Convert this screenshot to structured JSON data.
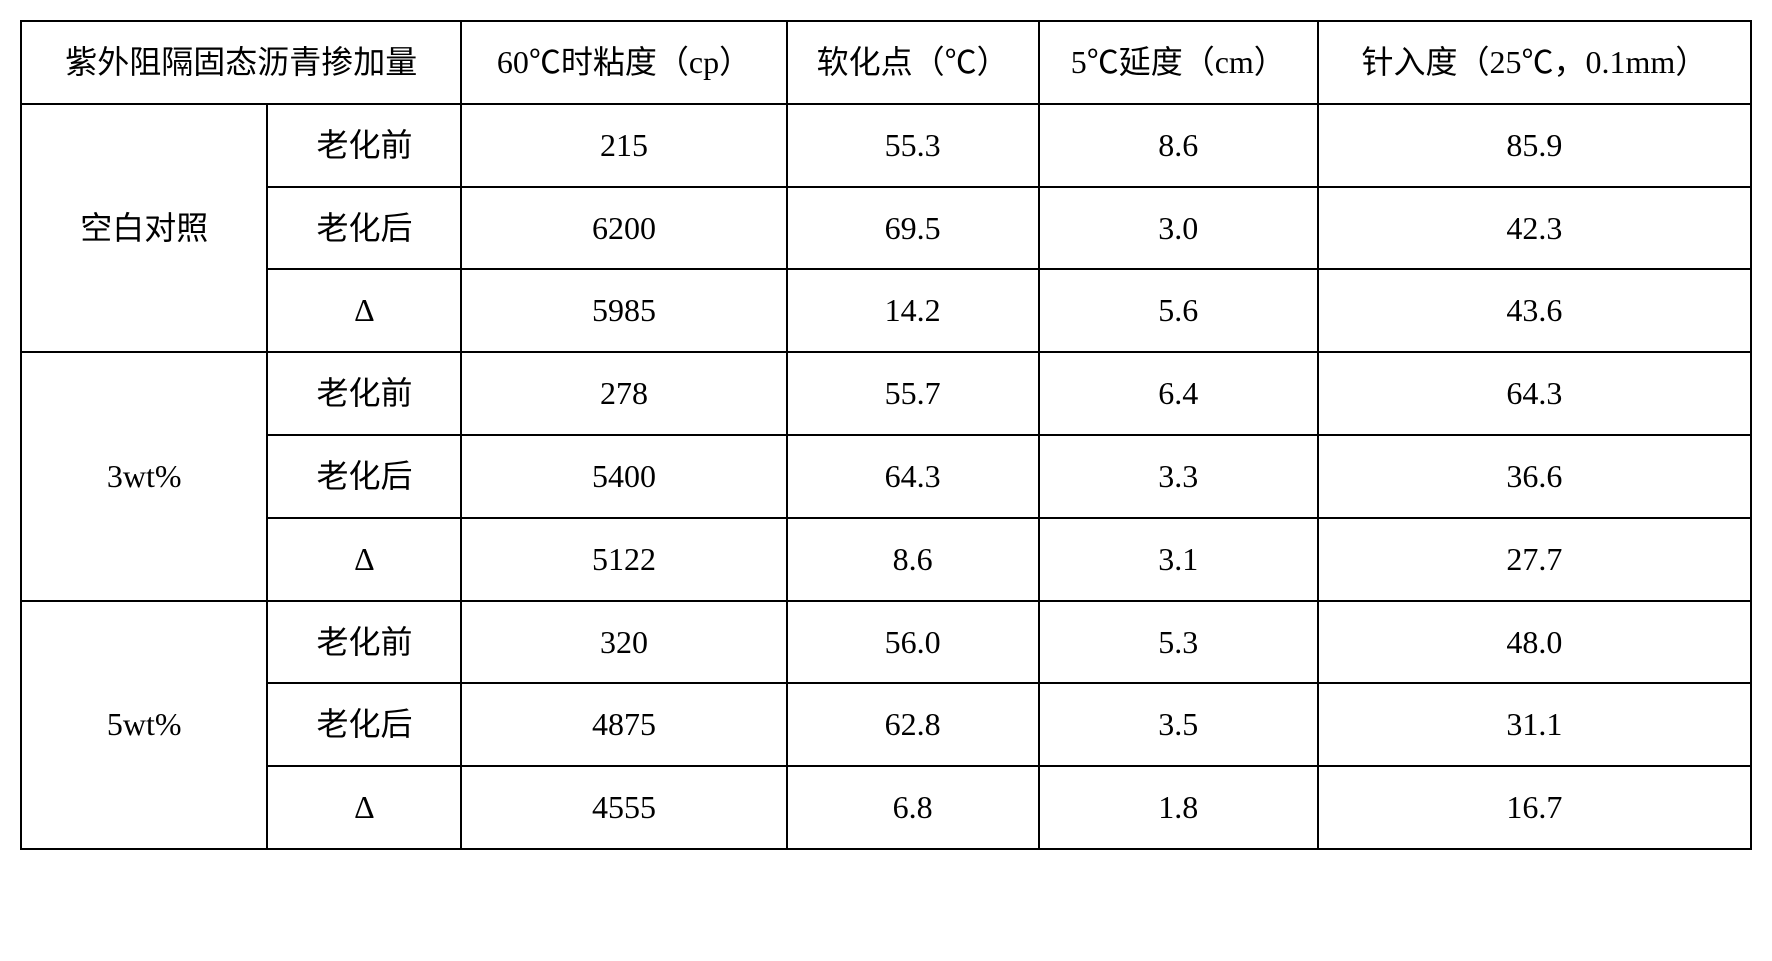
{
  "table": {
    "headers": {
      "col1": "紫外阻隔固态沥青掺加量",
      "col2": "60℃时粘度（cp）",
      "col3": "软化点（℃）",
      "col4": "5℃延度（cm）",
      "col5": "针入度（25℃，0.1mm）"
    },
    "groups": [
      {
        "label": "空白对照",
        "rows": [
          {
            "condition": "老化前",
            "viscosity": "215",
            "softening": "55.3",
            "ductility": "8.6",
            "penetration": "85.9"
          },
          {
            "condition": "老化后",
            "viscosity": "6200",
            "softening": "69.5",
            "ductility": "3.0",
            "penetration": "42.3"
          },
          {
            "condition": "Δ",
            "viscosity": "5985",
            "softening": "14.2",
            "ductility": "5.6",
            "penetration": "43.6"
          }
        ]
      },
      {
        "label": "3wt%",
        "rows": [
          {
            "condition": "老化前",
            "viscosity": "278",
            "softening": "55.7",
            "ductility": "6.4",
            "penetration": "64.3"
          },
          {
            "condition": "老化后",
            "viscosity": "5400",
            "softening": "64.3",
            "ductility": "3.3",
            "penetration": "36.6"
          },
          {
            "condition": "Δ",
            "viscosity": "5122",
            "softening": "8.6",
            "ductility": "3.1",
            "penetration": "27.7"
          }
        ]
      },
      {
        "label": "5wt%",
        "rows": [
          {
            "condition": "老化前",
            "viscosity": "320",
            "softening": "56.0",
            "ductility": "5.3",
            "penetration": "48.0"
          },
          {
            "condition": "老化后",
            "viscosity": "4875",
            "softening": "62.8",
            "ductility": "3.5",
            "penetration": "31.1"
          },
          {
            "condition": "Δ",
            "viscosity": "4555",
            "softening": "6.8",
            "ductility": "1.8",
            "penetration": "16.7"
          }
        ]
      }
    ],
    "styling": {
      "border_color": "#000000",
      "border_width": 2,
      "background_color": "#ffffff",
      "text_color": "#000000",
      "font_size": 32,
      "cell_padding": 18,
      "font_family": "SimSun",
      "column_widths_pct": [
        10,
        10,
        20,
        20,
        20,
        20
      ]
    }
  }
}
